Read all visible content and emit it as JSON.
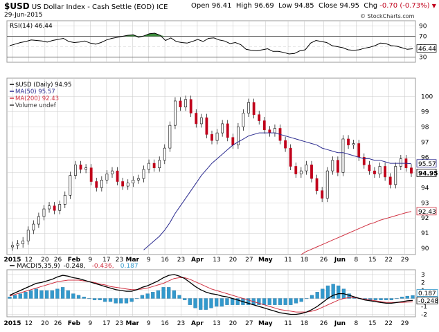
{
  "header": {
    "symbol": "$USD",
    "name": "US Dollar Index - Cash Settle (EOD)",
    "exchange": "ICE",
    "date": "29-Jun-2015",
    "open_label": "Open",
    "open": "96.41",
    "high_label": "High",
    "high": "96.69",
    "low_label": "Low",
    "low": "94.85",
    "close_label": "Close",
    "close": "94.95",
    "chg_label": "Chg",
    "chg": "-0.70 (-0.73%)",
    "down_icon": "down-triangle-icon",
    "credit": "© StockCharts.com"
  },
  "colors": {
    "up": "#ffffff",
    "down": "#c0001a",
    "ma50": "#2b2b8f",
    "ma200": "#d03040",
    "rsi": "#000000",
    "rsi_fill": "#3a8a3a",
    "macd": "#000000",
    "signal": "#d03040",
    "hist": "#3399cc",
    "grid": "#cccccc"
  },
  "chart_data": [
    {
      "type": "line",
      "name": "RSI panel",
      "legend": "RSI(14) 46.44",
      "last_value_label": "46.44",
      "ylim": [
        20,
        100
      ],
      "y_ticks": [
        "90",
        "70",
        "50",
        "30"
      ],
      "overbought": 70,
      "oversold": 30,
      "values": [
        52,
        55,
        58,
        60,
        63,
        62,
        61,
        59,
        62,
        64,
        66,
        60,
        58,
        59,
        61,
        57,
        55,
        58,
        63,
        66,
        68,
        70,
        72,
        73,
        68,
        71,
        75,
        76,
        72,
        62,
        67,
        60,
        58,
        57,
        60,
        64,
        60,
        66,
        67,
        63,
        61,
        56,
        58,
        54,
        45,
        43,
        42,
        44,
        46,
        41,
        41,
        39,
        36,
        37,
        42,
        44,
        57,
        62,
        60,
        58,
        52,
        50,
        48,
        44,
        43,
        44,
        47,
        49,
        52,
        57,
        56,
        52,
        51,
        48,
        45,
        46
      ]
    },
    {
      "type": "candlestick",
      "name": "Price panel",
      "legend": [
        "$USD (Daily) 94.95",
        "MA(50) 95.57",
        "MA(200) 92.43",
        "Volume undef"
      ],
      "ylim": [
        89.6,
        101.2
      ],
      "y_ticks": [
        "100",
        "99",
        "98",
        "97",
        "96",
        "95",
        "94",
        "93",
        "92",
        "91",
        "90"
      ],
      "last_labels": {
        "ma50": "95.57",
        "close": "94.95",
        "ma200": "92.43"
      },
      "close": [
        90.2,
        90.3,
        90.5,
        91.2,
        91.6,
        92.1,
        92.6,
        92.8,
        92.5,
        92.9,
        93.5,
        94.8,
        95.5,
        95.2,
        95.3,
        94.4,
        94.0,
        94.5,
        94.9,
        95.1,
        94.4,
        94.1,
        94.3,
        94.5,
        94.6,
        95.2,
        95.6,
        95.3,
        95.8,
        96.6,
        98.1,
        99.7,
        99.3,
        99.8,
        98.9,
        98.2,
        98.6,
        97.5,
        97.1,
        97.6,
        98.2,
        97.3,
        96.8,
        98.0,
        98.9,
        99.6,
        98.8,
        98.4,
        97.8,
        97.6,
        97.9,
        97.1,
        96.6,
        95.4,
        94.9,
        95.1,
        95.5,
        94.6,
        93.8,
        93.3,
        95.1,
        95.8,
        95.0,
        97.2,
        96.8,
        96.9,
        96.0,
        95.5,
        95.1,
        94.9,
        95.4,
        94.7,
        94.2,
        95.4,
        95.9,
        95.3,
        94.95
      ],
      "ma50": [
        null,
        null,
        null,
        null,
        null,
        null,
        null,
        null,
        null,
        null,
        null,
        null,
        null,
        null,
        null,
        null,
        null,
        null,
        null,
        null,
        null,
        null,
        null,
        null,
        null,
        89.9,
        90.2,
        90.5,
        90.8,
        91.2,
        91.7,
        92.3,
        92.8,
        93.3,
        93.8,
        94.3,
        94.8,
        95.2,
        95.6,
        95.9,
        96.2,
        96.5,
        96.8,
        97.0,
        97.2,
        97.4,
        97.5,
        97.6,
        97.6,
        97.6,
        97.6,
        97.5,
        97.4,
        97.3,
        97.2,
        97.1,
        97.0,
        96.9,
        96.8,
        96.6,
        96.5,
        96.4,
        96.3,
        96.3,
        96.2,
        96.1,
        96.0,
        95.9,
        95.9,
        95.8,
        95.8,
        95.7,
        95.6,
        95.6,
        95.6,
        95.6,
        95.57
      ],
      "ma200": [
        null,
        null,
        null,
        null,
        null,
        null,
        null,
        null,
        null,
        null,
        null,
        null,
        null,
        null,
        null,
        null,
        null,
        null,
        null,
        null,
        null,
        null,
        null,
        null,
        null,
        null,
        null,
        null,
        null,
        null,
        null,
        null,
        null,
        null,
        null,
        null,
        null,
        null,
        null,
        null,
        null,
        null,
        null,
        null,
        null,
        null,
        null,
        null,
        null,
        null,
        null,
        null,
        null,
        null,
        null,
        89.6,
        89.8,
        89.95,
        90.1,
        90.25,
        90.4,
        90.55,
        90.7,
        90.85,
        91.0,
        91.15,
        91.3,
        91.45,
        91.6,
        91.7,
        91.85,
        91.95,
        92.05,
        92.15,
        92.25,
        92.35,
        92.43
      ]
    },
    {
      "type": "line",
      "name": "MACD panel",
      "legend": [
        "MACD(5,35,9)",
        "-0.248,",
        "-0.436,",
        "0.187"
      ],
      "last_value_labels": [
        "0.187",
        "-0.248"
      ],
      "ylim": [
        -2.3,
        3.6
      ],
      "y_ticks": [
        "3",
        "2",
        "1",
        "0",
        "-1",
        "-2"
      ],
      "macd": [
        0.4,
        0.7,
        1.0,
        1.3,
        1.6,
        1.9,
        2.0,
        2.2,
        2.4,
        2.7,
        2.9,
        2.8,
        2.6,
        2.5,
        2.3,
        2.1,
        1.9,
        1.7,
        1.5,
        1.3,
        1.1,
        1.0,
        0.9,
        0.9,
        1.1,
        1.4,
        1.6,
        1.9,
        2.2,
        2.6,
        2.9,
        3.0,
        2.8,
        2.5,
        2.0,
        1.5,
        1.1,
        0.8,
        0.6,
        0.5,
        0.3,
        0.2,
        0.0,
        -0.2,
        -0.4,
        -0.6,
        -0.8,
        -1.0,
        -1.2,
        -1.4,
        -1.6,
        -1.8,
        -1.9,
        -2.0,
        -2.0,
        -1.9,
        -1.7,
        -1.4,
        -1.0,
        -0.5,
        0.0,
        0.4,
        0.6,
        0.6,
        0.4,
        0.2,
        0.0,
        -0.2,
        -0.3,
        -0.4,
        -0.5,
        -0.6,
        -0.6,
        -0.5,
        -0.4,
        -0.3,
        -0.248
      ],
      "signal": [
        0.3,
        0.5,
        0.7,
        0.9,
        1.1,
        1.3,
        1.5,
        1.7,
        1.9,
        2.1,
        2.2,
        2.3,
        2.3,
        2.3,
        2.2,
        2.1,
        2.0,
        1.8,
        1.7,
        1.5,
        1.4,
        1.3,
        1.2,
        1.1,
        1.1,
        1.2,
        1.3,
        1.5,
        1.7,
        1.9,
        2.2,
        2.5,
        2.6,
        2.6,
        2.4,
        2.1,
        1.8,
        1.5,
        1.2,
        1.0,
        0.8,
        0.6,
        0.4,
        0.2,
        0.0,
        -0.2,
        -0.4,
        -0.6,
        -0.8,
        -1.0,
        -1.2,
        -1.4,
        -1.5,
        -1.6,
        -1.7,
        -1.7,
        -1.7,
        -1.6,
        -1.4,
        -1.1,
        -0.8,
        -0.5,
        -0.2,
        0.0,
        0.1,
        0.1,
        0.0,
        -0.1,
        -0.2,
        -0.3,
        -0.4,
        -0.5,
        -0.5,
        -0.5,
        -0.5,
        -0.45,
        -0.436
      ]
    }
  ],
  "x_axis": {
    "labels": [
      "2015",
      "12",
      "20",
      "26",
      "Feb",
      "9",
      "17",
      "23",
      "Mar",
      "9",
      "16",
      "23",
      "Apr",
      "13",
      "20",
      "27",
      "May",
      "11",
      "18",
      "26",
      "Jun",
      "8",
      "15",
      "22",
      "29"
    ],
    "label_index": [
      0,
      5,
      10,
      14,
      19,
      24,
      29,
      33,
      37,
      42,
      47,
      52,
      57,
      63,
      68,
      73,
      78,
      85,
      90,
      96,
      101,
      106,
      111,
      116,
      121
    ]
  }
}
